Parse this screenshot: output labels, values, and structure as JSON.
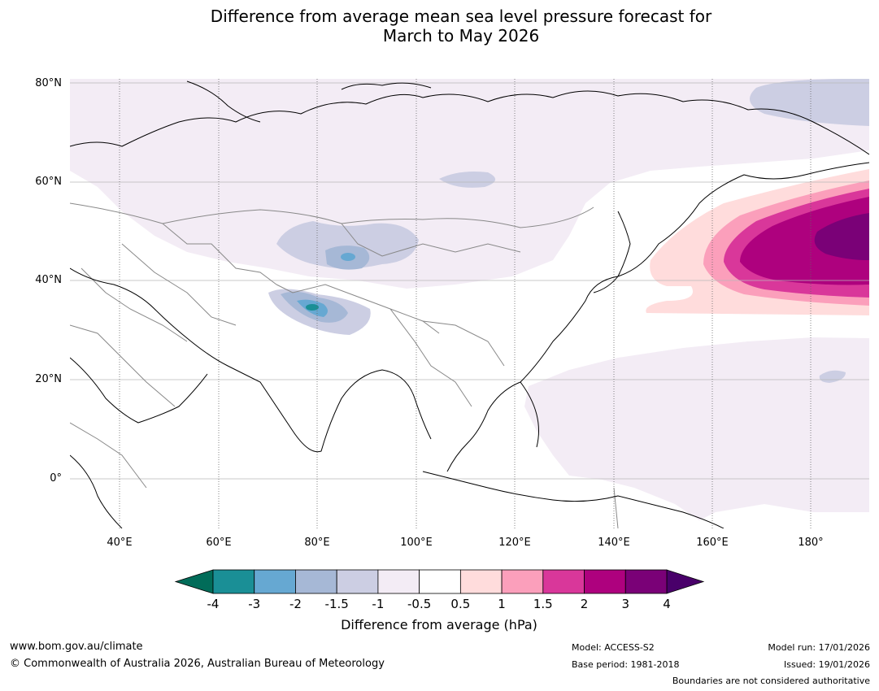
{
  "title": {
    "line1": "Difference from average mean sea level pressure forecast for",
    "line2": "March to May 2026"
  },
  "map": {
    "lat_labels": [
      "80°N",
      "60°N",
      "40°N",
      "20°N",
      "0°"
    ],
    "lon_labels": [
      "40°E",
      "60°E",
      "80°E",
      "100°E",
      "120°E",
      "140°E",
      "160°E",
      "180°"
    ]
  },
  "colorbar": {
    "ticks": [
      "-4",
      "-3",
      "-2",
      "-1.5",
      "-1",
      "-0.5",
      "0.5",
      "1",
      "1.5",
      "2",
      "3",
      "4"
    ],
    "colors": [
      "#1a8f96",
      "#66a8d2",
      "#a6b8d6",
      "#cccee3",
      "#f3ecf5",
      "#ffffff",
      "#ffdcdc",
      "#fb9fbb",
      "#d9379a",
      "#ae017e",
      "#7a0177"
    ],
    "extend_low_color": "#016c59",
    "extend_high_color": "#49006a",
    "label": "Difference from average (hPa)"
  },
  "footer": {
    "website": "www.bom.gov.au/climate",
    "copyright": "© Commonwealth of Australia 2026, Australian Bureau of Meteorology",
    "model": "Model: ACCESS-S2",
    "base_period": "Base period: 1981-2018",
    "model_run": "Model run: 17/01/2026",
    "issued": "Issued: 19/01/2026",
    "disclaimer": "Boundaries are not considered authoritative"
  }
}
